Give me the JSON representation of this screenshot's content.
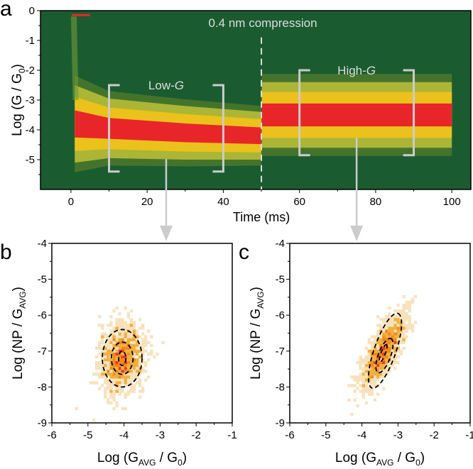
{
  "chart_data": [
    {
      "panel": "a",
      "type": "heatmap",
      "xlabel": "Time (ms)",
      "ylabel_main": "Log (G / G",
      "ylabel_sub": "0",
      "ylabel_end": ")",
      "xlim": [
        -8,
        105
      ],
      "ylim": [
        -6,
        0
      ],
      "xticks": [
        0,
        20,
        40,
        60,
        80,
        100
      ],
      "yticks": [
        0,
        -1,
        -2,
        -3,
        -4,
        -5
      ],
      "annotation": "0.4 nm compression",
      "compression_time": 50,
      "regions": [
        {
          "label": "Low-",
          "label_italic": "G",
          "x_range": [
            10,
            40
          ],
          "y_range": [
            -5.4,
            -2.5
          ]
        },
        {
          "label": "High-",
          "label_italic": "G",
          "x_range": [
            60,
            90
          ],
          "y_range": [
            -4.85,
            -2.0
          ]
        }
      ],
      "band_centers": [
        {
          "t": 1,
          "center": -3.8,
          "halfwidth": 1.3
        },
        {
          "t": 10,
          "center": -3.95,
          "halfwidth": 1.0
        },
        {
          "t": 30,
          "center": -4.1,
          "halfwidth": 0.9
        },
        {
          "t": 50,
          "center": -4.2,
          "halfwidth": 0.8
        },
        {
          "t": 50.1,
          "center": -3.5,
          "halfwidth": 1.1
        },
        {
          "t": 100,
          "center": -3.5,
          "halfwidth": 1.1
        }
      ],
      "colors": {
        "background": "#1a5c30",
        "low": "#d7d13a",
        "mid": "#f2c21a",
        "high": "#e8262a"
      }
    },
    {
      "panel": "b",
      "type": "heatmap",
      "xlabel_main": "Log (G",
      "xlabel_sub": "AVG",
      "xlabel_mid": " / G",
      "xlabel_sub2": "0",
      "xlabel_end": ")",
      "ylabel_main": "Log (NP / G",
      "ylabel_sub": "AVG",
      "ylabel_end": ")",
      "xlim": [
        -6,
        -1
      ],
      "ylim": [
        -9,
        -4
      ],
      "xticks": [
        -6,
        -5,
        -4,
        -3,
        -2,
        -1
      ],
      "yticks": [
        -4,
        -5,
        -6,
        -7,
        -8,
        -9
      ],
      "center": [
        -4.05,
        -7.2
      ],
      "spread": [
        0.3,
        0.45
      ],
      "correlation": 0.15,
      "contours": [
        {
          "semi_x": 0.55,
          "semi_y": 0.8
        },
        {
          "semi_x": 0.3,
          "semi_y": 0.45
        },
        {
          "semi_x": 0.1,
          "semi_y": 0.2
        }
      ]
    },
    {
      "panel": "c",
      "type": "heatmap",
      "xlabel_main": "Log (G",
      "xlabel_sub": "AVG",
      "xlabel_mid": " / G",
      "xlabel_sub2": "0",
      "xlabel_end": ")",
      "ylabel_main": "Log (NP / G",
      "ylabel_sub": "AVG",
      "ylabel_end": ")",
      "xlim": [
        -6,
        -1
      ],
      "ylim": [
        -9,
        -4
      ],
      "xticks": [
        -6,
        -5,
        -4,
        -3,
        -2,
        -1
      ],
      "yticks": [
        -4,
        -5,
        -6,
        -7,
        -8,
        -9
      ],
      "center": [
        -3.4,
        -7.0
      ],
      "spread": [
        0.3,
        0.5
      ],
      "correlation": 0.75,
      "contours": [
        {
          "end1": [
            -3.72,
            -8.03
          ],
          "end2": [
            -3.0,
            -5.95
          ],
          "half_minor_x": 0.3
        },
        {
          "end1": [
            -3.55,
            -7.6
          ],
          "end2": [
            -3.2,
            -6.65
          ],
          "half_minor_x": 0.17
        },
        {
          "end1": [
            -3.5,
            -7.3
          ],
          "end2": [
            -3.32,
            -6.82
          ],
          "half_minor_x": 0.06
        }
      ]
    }
  ],
  "panel_labels": [
    "a",
    "b",
    "c"
  ]
}
